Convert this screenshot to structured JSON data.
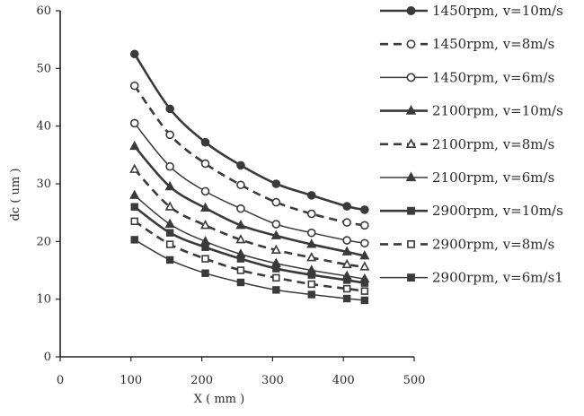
{
  "chart_data": {
    "type": "line",
    "xlabel": "X ( mm )",
    "ylabel": "dc ( um )",
    "xlim": [
      0,
      500
    ],
    "ylim": [
      0,
      60
    ],
    "xticks": [
      0,
      100,
      200,
      300,
      400,
      500
    ],
    "yticks": [
      0,
      10,
      20,
      30,
      40,
      50,
      60
    ],
    "grid": false,
    "legend_position": "right",
    "x": [
      105,
      155,
      205,
      255,
      305,
      355,
      405,
      430
    ],
    "series": [
      {
        "name": "1450rpm, v=10m/s",
        "marker": "filled-circle",
        "dash": "solid",
        "weight": "bold",
        "values": [
          52.5,
          43.0,
          37.2,
          33.2,
          30.0,
          28.0,
          26.1,
          25.5
        ]
      },
      {
        "name": "1450rpm, v=8m/s",
        "marker": "open-circle",
        "dash": "dashed",
        "weight": "bold",
        "values": [
          47.0,
          38.5,
          33.5,
          29.8,
          26.8,
          24.8,
          23.3,
          22.8
        ]
      },
      {
        "name": "1450rpm, v=6m/s",
        "marker": "open-circle",
        "dash": "solid",
        "weight": "thin",
        "values": [
          40.5,
          33.0,
          28.7,
          25.7,
          23.0,
          21.5,
          20.2,
          19.7
        ]
      },
      {
        "name": "2100rpm, v=10m/s",
        "marker": "filled-triangle",
        "dash": "solid",
        "weight": "bold",
        "values": [
          36.5,
          29.5,
          25.8,
          22.8,
          21.0,
          19.5,
          18.2,
          17.5
        ]
      },
      {
        "name": "2100rpm, v=8m/s",
        "marker": "open-triangle",
        "dash": "dashed",
        "weight": "bold",
        "values": [
          32.5,
          26.0,
          22.8,
          20.3,
          18.5,
          17.2,
          16.0,
          15.6
        ]
      },
      {
        "name": "2100rpm, v=6m/s",
        "marker": "filled-triangle",
        "dash": "solid",
        "weight": "thin",
        "values": [
          28.0,
          23.0,
          20.0,
          17.8,
          16.2,
          15.0,
          14.0,
          13.5
        ]
      },
      {
        "name": "2900rpm, v=10m/s",
        "marker": "filled-square",
        "dash": "solid",
        "weight": "bold",
        "values": [
          26.0,
          21.5,
          19.0,
          17.0,
          15.3,
          14.2,
          13.3,
          12.8
        ]
      },
      {
        "name": "2900rpm, v=8m/s",
        "marker": "open-square",
        "dash": "dashed",
        "weight": "bold",
        "values": [
          23.5,
          19.5,
          17.0,
          15.0,
          13.7,
          12.6,
          11.8,
          11.4
        ]
      },
      {
        "name": "2900rpm, v=6m/s1",
        "marker": "filled-square",
        "dash": "solid",
        "weight": "thin",
        "values": [
          20.3,
          16.8,
          14.5,
          12.9,
          11.6,
          10.8,
          10.1,
          9.8
        ]
      }
    ],
    "colors": {
      "line": "#3a3a3a",
      "marker": "#3a3a3a",
      "axis": "#222222",
      "background": "#ffffff"
    }
  }
}
